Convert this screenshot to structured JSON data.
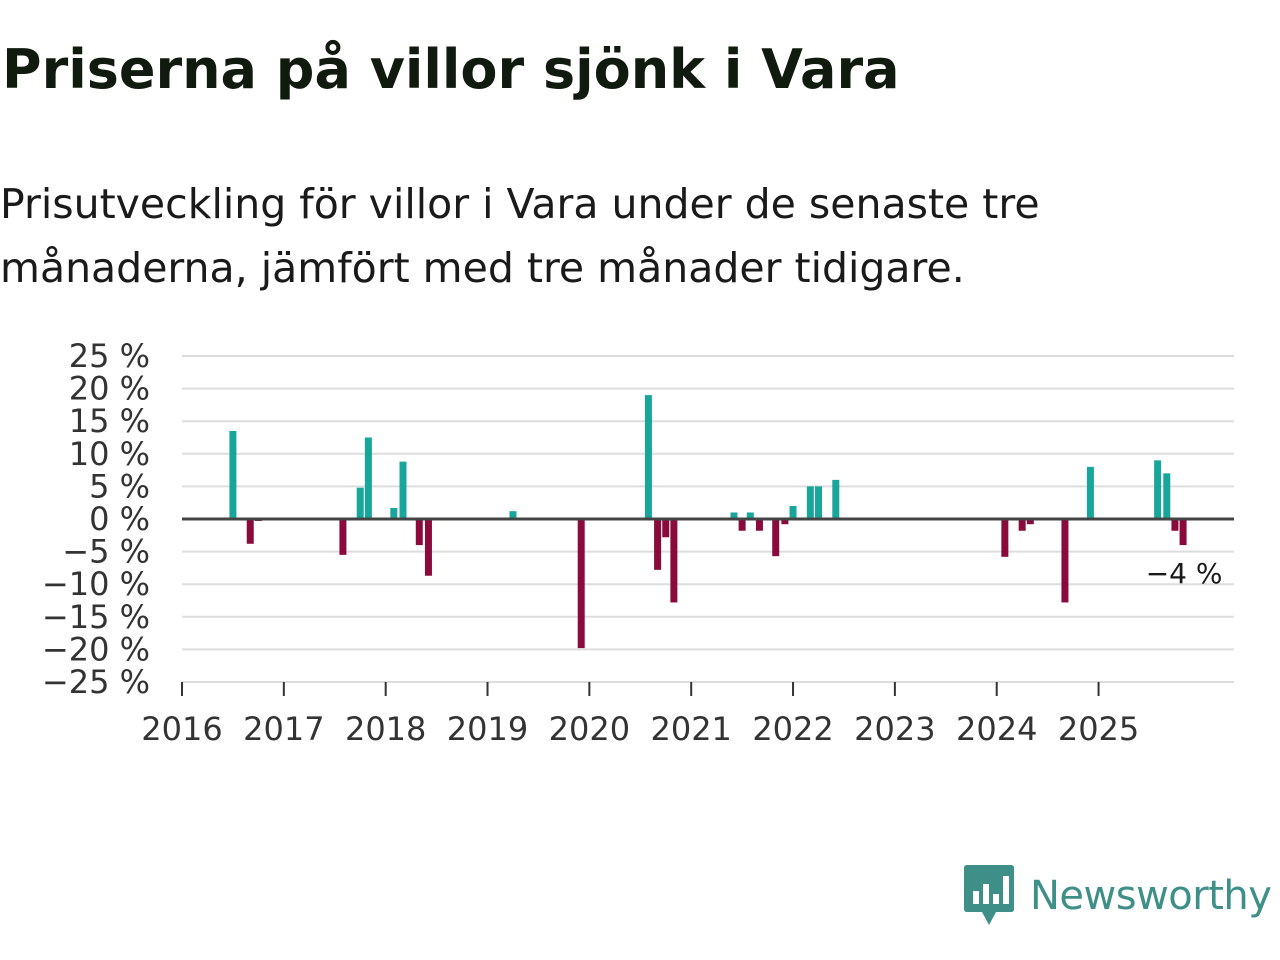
{
  "title": "Priserna på villor sjönk i Vara",
  "subtitle": "Prisutveckling för villor i Vara under de senaste tre månaderna, jämfört med tre månader tidigare.",
  "brand": {
    "name": "Newsworthy",
    "icon": "newsworthy-logo-icon",
    "color": "#3d8f88"
  },
  "colors": {
    "positive": "#18a59a",
    "negative": "#8a0a3c",
    "grid": "#dddddd",
    "zero": "#444444"
  },
  "chart_data": {
    "type": "bar",
    "title": "Priserna på villor sjönk i Vara",
    "ylim": [
      -25,
      25
    ],
    "y_ticks": [
      25,
      20,
      15,
      10,
      5,
      0,
      -5,
      -10,
      -15,
      -20,
      -25
    ],
    "y_tick_labels": [
      "25 %",
      "20 %",
      "15 %",
      "10 %",
      "5 %",
      "0 %",
      "−5 %",
      "−10 %",
      "−15 %",
      "−20 %",
      "−25 %"
    ],
    "x_range": [
      2016,
      2026.33
    ],
    "x_ticks": [
      2016,
      2017,
      2018,
      2019,
      2020,
      2021,
      2022,
      2023,
      2024,
      2025
    ],
    "x_tick_labels": [
      "2016",
      "2017",
      "2018",
      "2019",
      "2020",
      "2021",
      "2022",
      "2023",
      "2024",
      "2025"
    ],
    "points": [
      {
        "x": 2016.5,
        "value": 13.5
      },
      {
        "x": 2016.67,
        "value": -3.8
      },
      {
        "x": 2016.75,
        "value": -0.3
      },
      {
        "x": 2017.58,
        "value": -5.5
      },
      {
        "x": 2017.75,
        "value": 4.8
      },
      {
        "x": 2017.83,
        "value": 12.5
      },
      {
        "x": 2018.08,
        "value": 1.7
      },
      {
        "x": 2018.17,
        "value": 8.8
      },
      {
        "x": 2018.33,
        "value": -4.0
      },
      {
        "x": 2018.42,
        "value": -8.7
      },
      {
        "x": 2019.25,
        "value": 1.2
      },
      {
        "x": 2019.92,
        "value": -19.8
      },
      {
        "x": 2020.58,
        "value": 19.0
      },
      {
        "x": 2020.67,
        "value": -7.8
      },
      {
        "x": 2020.75,
        "value": -2.8
      },
      {
        "x": 2020.83,
        "value": -12.8
      },
      {
        "x": 2021.42,
        "value": 1.0
      },
      {
        "x": 2021.5,
        "value": -1.8
      },
      {
        "x": 2021.58,
        "value": 1.0
      },
      {
        "x": 2021.67,
        "value": -1.8
      },
      {
        "x": 2021.83,
        "value": -5.7
      },
      {
        "x": 2021.92,
        "value": -0.8
      },
      {
        "x": 2022.0,
        "value": 2.0
      },
      {
        "x": 2022.17,
        "value": 5.0
      },
      {
        "x": 2022.25,
        "value": 5.0
      },
      {
        "x": 2022.42,
        "value": 6.0
      },
      {
        "x": 2024.08,
        "value": -5.8
      },
      {
        "x": 2024.25,
        "value": -1.8
      },
      {
        "x": 2024.33,
        "value": -0.8
      },
      {
        "x": 2024.67,
        "value": -12.8
      },
      {
        "x": 2024.92,
        "value": 8.0
      },
      {
        "x": 2025.58,
        "value": 9.0
      },
      {
        "x": 2025.67,
        "value": 7.0
      },
      {
        "x": 2025.75,
        "value": -1.8
      },
      {
        "x": 2025.83,
        "value": -4.0
      }
    ],
    "annotation": {
      "x": 2025.83,
      "value": -4.0,
      "label": "−4 %"
    }
  }
}
